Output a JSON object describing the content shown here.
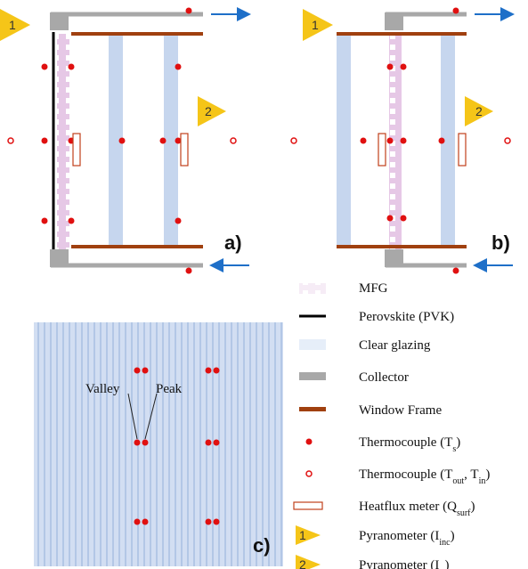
{
  "panels": [
    {
      "label": "a)",
      "pyranometers": [
        "1",
        "2"
      ]
    },
    {
      "label": "b)",
      "pyranometers": [
        "1",
        "2"
      ]
    },
    {
      "label": "c)",
      "annotations": [
        "Valley",
        "Peak"
      ]
    }
  ],
  "legend": [
    {
      "parts": [
        {
          "text": "MFG"
        }
      ]
    },
    {
      "parts": [
        {
          "text": "Perovskite (PVK)"
        }
      ]
    },
    {
      "parts": [
        {
          "text": "Clear glazing"
        }
      ]
    },
    {
      "parts": [
        {
          "text": "Collector"
        }
      ]
    },
    {
      "parts": [
        {
          "text": "Window Frame"
        }
      ]
    },
    {
      "parts": [
        {
          "text": "Thermocouple (T"
        },
        {
          "sub": "s"
        },
        {
          "text": ")"
        }
      ]
    },
    {
      "parts": [
        {
          "text": "Thermocouple (T"
        },
        {
          "sub": "out"
        },
        {
          "text": ", T"
        },
        {
          "sub": "in"
        },
        {
          "text": ")"
        }
      ]
    },
    {
      "parts": [
        {
          "text": "Heatflux meter (Q"
        },
        {
          "sub": "surf"
        },
        {
          "text": ")"
        }
      ]
    },
    {
      "marker": "1",
      "parts": [
        {
          "text": "Pyranometer (I"
        },
        {
          "sub": "inc"
        },
        {
          "text": ")"
        }
      ]
    },
    {
      "marker": "2",
      "parts": [
        {
          "text": "Pyranometer (I"
        },
        {
          "sub": "tr"
        },
        {
          "text": ")"
        }
      ]
    }
  ]
}
